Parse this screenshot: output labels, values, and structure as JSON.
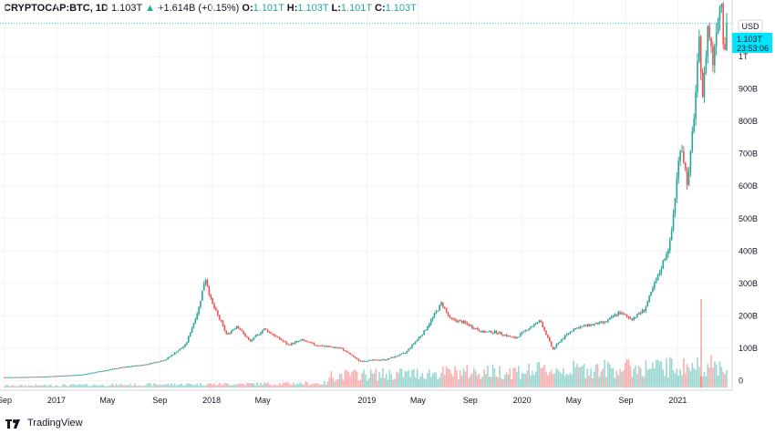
{
  "header": {
    "symbol": "CRYPTOCAP:BTC, 1D",
    "last": "1.103T",
    "change_arrow": "▲",
    "change": "+1.614B (+0.15%)",
    "open_label": "O:",
    "open": "1.101T",
    "high_label": "H:",
    "high": "1.103T",
    "low_label": "L:",
    "low": "1.101T",
    "close_label": "C:",
    "close": "1.103T"
  },
  "price_tag": {
    "value": "1.103T",
    "countdown": "23:53:06"
  },
  "footer": {
    "brand": "TradingView",
    "logo_icon": "tradingview-logo-icon"
  },
  "colors": {
    "up": "#26a69a",
    "down": "#ef5350",
    "grid": "#f0f3fa",
    "tag": "#00e5ff",
    "axis_text": "#131722"
  },
  "chart_data": {
    "type": "line",
    "title": "",
    "xlabel": "",
    "ylabel": "",
    "currency_label": "USD",
    "x_ticks": [
      "Sep",
      "2017",
      "May",
      "Sep",
      "2018",
      "May",
      "2019",
      "May",
      "Sep",
      "2020",
      "May",
      "Sep",
      "2021"
    ],
    "x_tick_dates": [
      "2016-09-01",
      "2017-01-01",
      "2017-05-01",
      "2017-09-01",
      "2018-01-01",
      "2018-05-01",
      "2019-01-01",
      "2019-05-01",
      "2019-09-01",
      "2020-01-01",
      "2020-05-01",
      "2020-09-01",
      "2021-01-01"
    ],
    "y_ticks": [
      "0",
      "100B",
      "200B",
      "300B",
      "400B",
      "500B",
      "600B",
      "700B",
      "800B",
      "900B",
      "1T"
    ],
    "y_tick_values": [
      0,
      100,
      200,
      300,
      400,
      500,
      600,
      700,
      800,
      900,
      1000
    ],
    "ylim_billions": [
      -30,
      1175
    ],
    "xlim": [
      "2016-09-01",
      "2021-04-26"
    ],
    "series": [
      {
        "x": [
          "2016-09-01",
          "2016-12-01",
          "2017-03-01",
          "2017-06-01",
          "2017-08-01",
          "2017-09-15",
          "2017-11-01",
          "2017-12-01",
          "2017-12-17",
          "2018-01-01",
          "2018-02-06",
          "2018-03-01",
          "2018-04-01",
          "2018-05-05",
          "2018-06-30",
          "2018-08-01",
          "2018-09-01",
          "2018-11-01",
          "2018-12-15",
          "2019-01-15",
          "2019-02-15",
          "2019-04-01",
          "2019-05-15",
          "2019-06-26",
          "2019-07-15",
          "2019-08-15",
          "2019-09-30",
          "2019-11-01",
          "2019-12-15",
          "2020-01-15",
          "2020-02-13",
          "2020-03-13",
          "2020-04-01",
          "2020-05-01",
          "2020-06-01",
          "2020-07-15",
          "2020-08-15",
          "2020-09-15",
          "2020-10-15",
          "2020-11-15",
          "2020-12-15",
          "2021-01-08",
          "2021-01-25",
          "2021-02-10",
          "2021-02-21",
          "2021-03-01",
          "2021-03-13",
          "2021-03-25",
          "2021-04-01",
          "2021-04-14",
          "2021-04-20",
          "2021-04-26"
        ],
        "values": [
          10,
          12,
          18,
          40,
          50,
          65,
          110,
          220,
          320,
          240,
          140,
          170,
          120,
          160,
          110,
          125,
          110,
          100,
          60,
          63,
          65,
          85,
          150,
          240,
          190,
          180,
          150,
          150,
          130,
          160,
          185,
          95,
          125,
          160,
          170,
          180,
          210,
          190,
          220,
          320,
          430,
          740,
          600,
          850,
          1050,
          870,
          1100,
          980,
          1090,
          1185,
          1000,
          1103
        ]
      }
    ],
    "volume_note_values_billions": [
      2,
      3,
      4,
      6,
      8,
      10,
      12,
      30,
      28,
      35,
      60,
      40,
      20,
      25,
      80,
      45,
      60,
      50
    ]
  }
}
